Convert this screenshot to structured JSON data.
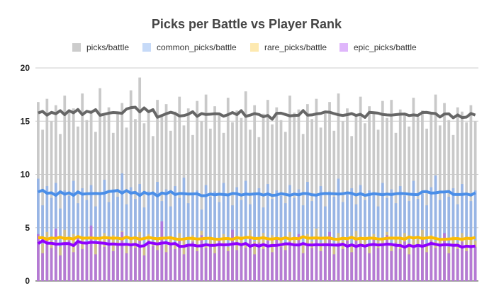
{
  "chart_data": {
    "type": "bar",
    "title": "Picks per Battle vs Player Rank",
    "xlabel": "",
    "ylabel": "",
    "ylim": [
      0,
      20
    ],
    "yticks": [
      "0",
      "5",
      "10",
      "15",
      "20"
    ],
    "grid": true,
    "legend_position": "top",
    "overlay": "moving-average trendline per series",
    "series": [
      {
        "name": "picks/battle",
        "bar_color": "#c9c9c9",
        "line_color": "#666666",
        "values": [
          16.8,
          14.2,
          17.1,
          15.0,
          16.5,
          13.8,
          17.4,
          15.9,
          16.2,
          14.5,
          17.6,
          15.1,
          16.0,
          14.0,
          18.1,
          15.5,
          16.3,
          13.9,
          15.8,
          16.7,
          14.4,
          17.9,
          15.2,
          19.1,
          14.8,
          16.1,
          13.6,
          17.0,
          15.4,
          16.6,
          14.1,
          15.9,
          17.3,
          14.6,
          16.2,
          13.7,
          16.9,
          15.0,
          17.5,
          14.3,
          16.4,
          15.6,
          13.9,
          17.2,
          14.9,
          16.0,
          15.3,
          17.8,
          14.2,
          16.5,
          13.5,
          15.7,
          17.0,
          14.7,
          16.3,
          15.1,
          14.0,
          17.4,
          15.8,
          16.1,
          13.8,
          16.6,
          15.2,
          17.1,
          14.4,
          15.9,
          16.8,
          14.1,
          17.6,
          15.0,
          16.2,
          13.6,
          15.5,
          17.3,
          14.8,
          16.4,
          15.7,
          14.2,
          16.9,
          15.3,
          17.0,
          13.9,
          16.1,
          15.6,
          14.5,
          17.2,
          15.4,
          16.0,
          14.3,
          15.8,
          17.5,
          14.6,
          16.7,
          15.1,
          13.7,
          16.3,
          15.9,
          14.9,
          16.5,
          15.0
        ]
      },
      {
        "name": "common_picks/battle",
        "bar_color": "#8fb2ea",
        "line_color": "#4a8ee8",
        "values": [
          9.6,
          7.1,
          8.9,
          7.8,
          9.2,
          6.8,
          8.5,
          8.0,
          9.4,
          7.3,
          8.7,
          7.6,
          9.0,
          7.0,
          8.3,
          9.5,
          7.4,
          8.6,
          7.9,
          10.1,
          7.2,
          8.8,
          7.7,
          9.1,
          6.9,
          8.4,
          8.1,
          9.3,
          7.5,
          8.6,
          7.0,
          8.9,
          7.8,
          9.7,
          7.3,
          8.2,
          8.5,
          6.7,
          9.0,
          7.9,
          8.4,
          7.4,
          9.2,
          8.0,
          7.1,
          8.8,
          7.6,
          9.4,
          7.2,
          8.3,
          8.7,
          6.9,
          9.1,
          7.7,
          8.5,
          8.0,
          7.3,
          9.0,
          7.8,
          8.6,
          7.1,
          9.3,
          7.5,
          8.2,
          8.9,
          7.0,
          8.4,
          7.9,
          9.6,
          7.4,
          8.1,
          8.7,
          7.2,
          9.0,
          7.6,
          8.5,
          8.3,
          7.0,
          9.2,
          7.8,
          8.6,
          7.3,
          8.9,
          8.0,
          7.5,
          9.4,
          7.7,
          8.2,
          7.1,
          8.8,
          9.9,
          7.6,
          8.4,
          7.9,
          8.7,
          7.2,
          9.1,
          8.0,
          7.5,
          8.5
        ]
      },
      {
        "name": "rare_picks/battle",
        "bar_color": "#d9c07a",
        "line_color": "#fbbc04",
        "values": [
          4.3,
          3.5,
          4.6,
          3.8,
          4.1,
          3.2,
          4.8,
          3.9,
          4.4,
          3.6,
          4.2,
          3.4,
          4.9,
          3.7,
          4.0,
          4.5,
          3.3,
          4.3,
          3.8,
          4.7,
          3.5,
          4.1,
          3.9,
          4.6,
          3.2,
          4.4,
          3.7,
          4.0,
          4.8,
          3.4,
          4.2,
          3.6,
          4.5,
          3.9,
          3.3,
          4.3,
          3.8,
          4.7,
          3.5,
          4.1,
          4.0,
          3.6,
          4.4,
          3.2,
          4.6,
          3.9,
          4.2,
          3.4,
          4.8,
          3.7,
          4.0,
          4.5,
          3.3,
          4.3,
          3.8,
          4.1,
          3.5,
          4.6,
          3.9,
          4.2,
          3.4,
          4.4,
          3.7,
          4.9,
          3.6,
          4.0,
          4.3,
          3.2,
          4.5,
          3.8,
          4.1,
          3.5,
          4.7,
          3.9,
          4.2,
          3.3,
          4.4,
          3.7,
          4.0,
          4.6,
          3.4,
          4.2,
          3.8,
          4.5,
          3.6,
          4.1,
          3.9,
          4.8,
          3.5,
          4.3,
          3.7,
          4.0,
          4.4,
          3.2,
          4.2,
          3.6,
          4.5,
          3.9,
          4.1,
          3.8
        ]
      },
      {
        "name": "epic_picks/battle",
        "bar_color": "#b06ee0",
        "line_color": "#9000ff",
        "values": [
          4.4,
          2.6,
          3.9,
          3.1,
          4.9,
          2.4,
          3.5,
          3.8,
          2.7,
          4.2,
          3.0,
          3.6,
          5.2,
          2.5,
          3.7,
          3.2,
          4.0,
          2.8,
          3.4,
          4.6,
          2.6,
          3.5,
          3.1,
          4.1,
          2.4,
          3.8,
          3.3,
          2.9,
          5.6,
          2.7,
          3.6,
          3.0,
          4.0,
          2.5,
          3.2,
          3.7,
          2.8,
          4.3,
          3.1,
          3.4,
          2.6,
          3.9,
          3.3,
          2.8,
          4.8,
          2.9,
          3.5,
          3.1,
          4.2,
          2.5,
          3.6,
          3.0,
          3.8,
          2.7,
          4.1,
          3.2,
          2.9,
          3.7,
          3.4,
          4.4,
          2.6,
          3.5,
          3.1,
          3.9,
          2.8,
          3.3,
          4.6,
          2.5,
          3.6,
          3.0,
          3.8,
          2.7,
          4.0,
          3.2,
          3.4,
          2.6,
          3.9,
          3.1,
          3.5,
          4.3,
          2.8,
          3.6,
          3.0,
          3.7,
          2.5,
          3.4,
          3.2,
          4.1,
          2.7,
          3.8,
          3.1,
          3.3,
          4.5,
          2.6,
          3.5,
          3.0,
          3.7,
          2.8,
          3.4,
          3.2
        ]
      }
    ],
    "legend_swatches": [
      "#cccccc",
      "#c6daf8",
      "#fde9b0",
      "#dfb6fb"
    ]
  }
}
